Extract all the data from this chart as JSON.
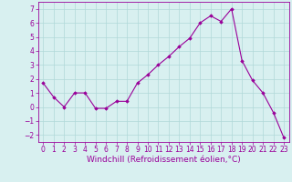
{
  "x": [
    0,
    1,
    2,
    3,
    4,
    5,
    6,
    7,
    8,
    9,
    10,
    11,
    12,
    13,
    14,
    15,
    16,
    17,
    18,
    19,
    20,
    21,
    22,
    23
  ],
  "y": [
    1.7,
    0.7,
    0.0,
    1.0,
    1.0,
    -0.1,
    -0.1,
    0.4,
    0.4,
    1.7,
    2.3,
    3.0,
    3.6,
    4.3,
    4.9,
    6.0,
    6.5,
    6.1,
    7.0,
    3.3,
    1.9,
    1.0,
    -0.4,
    -2.2
  ],
  "line_color": "#990099",
  "marker": "D",
  "marker_size": 1.8,
  "line_width": 0.8,
  "xlabel": "Windchill (Refroidissement éolien,°C)",
  "xlabel_fontsize": 6.5,
  "ylim": [
    -2.5,
    7.5
  ],
  "xlim": [
    -0.5,
    23.5
  ],
  "yticks": [
    -2,
    -1,
    0,
    1,
    2,
    3,
    4,
    5,
    6,
    7
  ],
  "xticks": [
    0,
    1,
    2,
    3,
    4,
    5,
    6,
    7,
    8,
    9,
    10,
    11,
    12,
    13,
    14,
    15,
    16,
    17,
    18,
    19,
    20,
    21,
    22,
    23
  ],
  "tick_fontsize": 5.5,
  "grid_color": "#b0d8d8",
  "background_color": "#d8f0f0",
  "tick_color": "#990099",
  "spine_color": "#990099"
}
